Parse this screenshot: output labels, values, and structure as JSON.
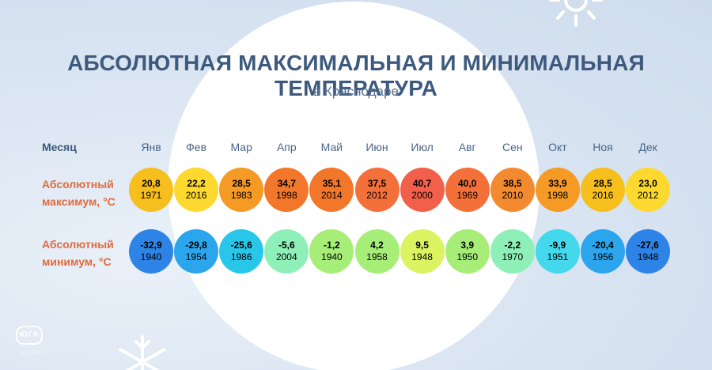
{
  "title": "АБСОЛЮТНАЯ МАКСИМАЛЬНАЯ И МИНИМАЛЬНАЯ ТЕМПЕРАТУРА",
  "subtitle": "в Краснодаре",
  "labels": {
    "month": "Месяц",
    "max_line1": "Абсолютный",
    "max_line2": "максимум, °С",
    "min_line1": "Абсолютный",
    "min_line2": "минимум, °С"
  },
  "logo": {
    "mark": "ЮГА",
    "site": "yuga.ru"
  },
  "colors": {
    "title": "#3d5a7e",
    "row_label": "#e16b3c",
    "max_dots": [
      "#f6bf1d",
      "#fdd92f",
      "#f59a24",
      "#f3772b",
      "#f3772b",
      "#f4703b",
      "#f2604b",
      "#f4703b",
      "#f48a30",
      "#f59a24",
      "#f6bf1d",
      "#fdd92f"
    ],
    "min_dots": [
      "#2d84e6",
      "#2ba6ec",
      "#28c7ea",
      "#8ef0b8",
      "#a6ee77",
      "#a6ee77",
      "#dbf361",
      "#a6ee77",
      "#8ef0b8",
      "#43d8ec",
      "#2ba6ec",
      "#2d84e6"
    ]
  },
  "chart_data": {
    "type": "table",
    "categories": [
      "Янв",
      "Фев",
      "Мар",
      "Апр",
      "Май",
      "Июн",
      "Июл",
      "Авг",
      "Сен",
      "Окт",
      "Ноя",
      "Дек"
    ],
    "series": [
      {
        "values": [
          "20,8",
          "22,2",
          "28,5",
          "34,7",
          "35,1",
          "37,5",
          "40,7",
          "40,0",
          "38,5",
          "33,9",
          "28,5",
          "23,0"
        ],
        "years": [
          "1971",
          "2016",
          "1983",
          "1998",
          "2014",
          "2012",
          "2000",
          "1969",
          "2010",
          "1998",
          "2016",
          "2012"
        ]
      },
      {
        "values": [
          "-32,9",
          "-29,8",
          "-25,6",
          "-5,6",
          "-1,2",
          "4,2",
          "9,5",
          "3,9",
          "-2,2",
          "-9,9",
          "-20,4",
          "-27,6"
        ],
        "years": [
          "1940",
          "1954",
          "1986",
          "2004",
          "1940",
          "1958",
          "1948",
          "1950",
          "1970",
          "1951",
          "1956",
          "1948"
        ]
      }
    ]
  }
}
